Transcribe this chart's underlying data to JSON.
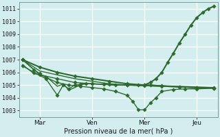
{
  "bg_color": "#d4eef0",
  "grid_color": "#ffffff",
  "line_color": "#2d6a2d",
  "xlabel": "Pression niveau de la mer( hPa )",
  "ylim": [
    1002.5,
    1011.5
  ],
  "yticks": [
    1003,
    1004,
    1005,
    1006,
    1007,
    1008,
    1009,
    1010,
    1011
  ],
  "xlim": [
    -0.1,
    5.6
  ],
  "vlines_x": [
    0.5,
    2.0,
    3.5,
    5.0
  ],
  "xtick_labels": [
    "Mar",
    "Ven",
    "Mer",
    "Jeu"
  ],
  "xtick_positions": [
    0.5,
    2.0,
    3.5,
    5.0
  ],
  "line1": {
    "x": [
      0.0,
      0.5,
      1.0,
      1.5,
      2.0,
      2.5,
      3.0,
      3.5,
      4.0,
      4.5,
      5.0,
      5.5
    ],
    "y": [
      1007.0,
      1006.1,
      1005.8,
      1005.5,
      1005.3,
      1005.1,
      1005.0,
      1004.95,
      1004.9,
      1004.85,
      1004.8,
      1004.8
    ]
  },
  "line2": {
    "x": [
      0.0,
      0.5,
      1.0,
      1.5,
      2.0,
      2.5,
      3.0,
      3.5,
      4.0,
      4.5,
      5.0,
      5.5
    ],
    "y": [
      1007.0,
      1005.8,
      1005.5,
      1005.2,
      1005.1,
      1005.05,
      1005.0,
      1004.95,
      1004.9,
      1004.85,
      1004.8,
      1004.8
    ]
  },
  "line3": {
    "x": [
      0.0,
      0.33,
      0.67,
      1.0,
      1.17,
      1.33,
      1.5,
      1.67,
      1.83,
      2.0,
      2.33,
      2.67,
      3.0,
      3.33,
      3.5,
      3.67,
      4.0,
      4.5,
      5.0,
      5.5
    ],
    "y": [
      1006.6,
      1005.9,
      1005.7,
      1004.9,
      1005.1,
      1004.6,
      1004.8,
      1005.05,
      1005.1,
      1005.1,
      1005.05,
      1005.0,
      1005.0,
      1005.0,
      1005.0,
      1005.0,
      1004.95,
      1004.9,
      1004.85,
      1004.8
    ]
  },
  "line4": {
    "x": [
      0.0,
      0.33,
      0.67,
      1.0,
      1.17,
      1.33,
      1.5,
      1.67,
      1.83,
      2.0,
      2.33,
      2.67,
      3.0,
      3.33,
      3.5,
      3.67,
      4.0,
      4.5,
      5.0,
      5.5
    ],
    "y": [
      1006.5,
      1006.0,
      1005.5,
      1004.2,
      1005.0,
      1004.7,
      1005.0,
      1005.05,
      1005.1,
      1005.1,
      1005.05,
      1005.0,
      1005.0,
      1005.0,
      1005.0,
      1005.0,
      1004.95,
      1004.85,
      1004.8,
      1004.75
    ]
  },
  "line5": {
    "x": [
      0.0,
      0.33,
      0.5,
      0.67,
      1.0,
      1.33,
      1.67,
      2.0,
      2.33,
      2.67,
      3.0,
      3.17,
      3.33,
      3.5,
      3.67,
      3.83,
      4.0,
      4.33,
      4.67,
      5.0,
      5.5
    ],
    "y": [
      1007.0,
      1006.2,
      1005.9,
      1005.6,
      1005.2,
      1005.0,
      1004.9,
      1004.8,
      1004.7,
      1004.5,
      1004.2,
      1003.7,
      1003.05,
      1003.05,
      1003.6,
      1004.0,
      1004.5,
      1004.65,
      1004.7,
      1004.7,
      1004.75
    ]
  },
  "big_line": {
    "x": [
      0.0,
      0.5,
      1.0,
      1.5,
      2.0,
      2.5,
      3.0,
      3.5,
      3.67,
      3.83,
      4.0,
      4.17,
      4.33,
      4.5,
      4.67,
      4.83,
      5.0,
      5.17,
      5.33,
      5.5
    ],
    "y": [
      1007.0,
      1006.4,
      1006.0,
      1005.7,
      1005.5,
      1005.3,
      1005.1,
      1005.0,
      1005.2,
      1005.5,
      1006.0,
      1006.8,
      1007.5,
      1008.3,
      1009.0,
      1009.7,
      1010.3,
      1010.7,
      1011.0,
      1011.2
    ]
  }
}
